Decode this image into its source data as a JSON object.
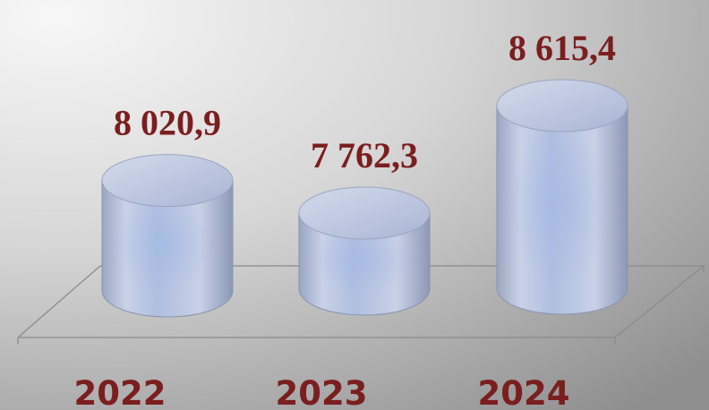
{
  "chart_data": {
    "type": "bar",
    "style": "3d-cylinder",
    "title": "",
    "xlabel": "",
    "ylabel": "",
    "categories": [
      "2022",
      "2023",
      "2024"
    ],
    "values": [
      8020.9,
      7762.3,
      8615.4
    ],
    "value_labels": [
      "8 020,9",
      "7 762,3",
      "8 615,4"
    ],
    "grid": false,
    "legend": "none",
    "colors": {
      "background_light": "#f4f4f4",
      "background_dark": "#9a9a9a",
      "cylinder_light": "#dfe6f2",
      "cylinder_mid": "#b4c2dc",
      "cylinder_dark": "#8d9bbb",
      "label": "#7b1e1e",
      "floor_line": "#8a8a8a"
    }
  }
}
